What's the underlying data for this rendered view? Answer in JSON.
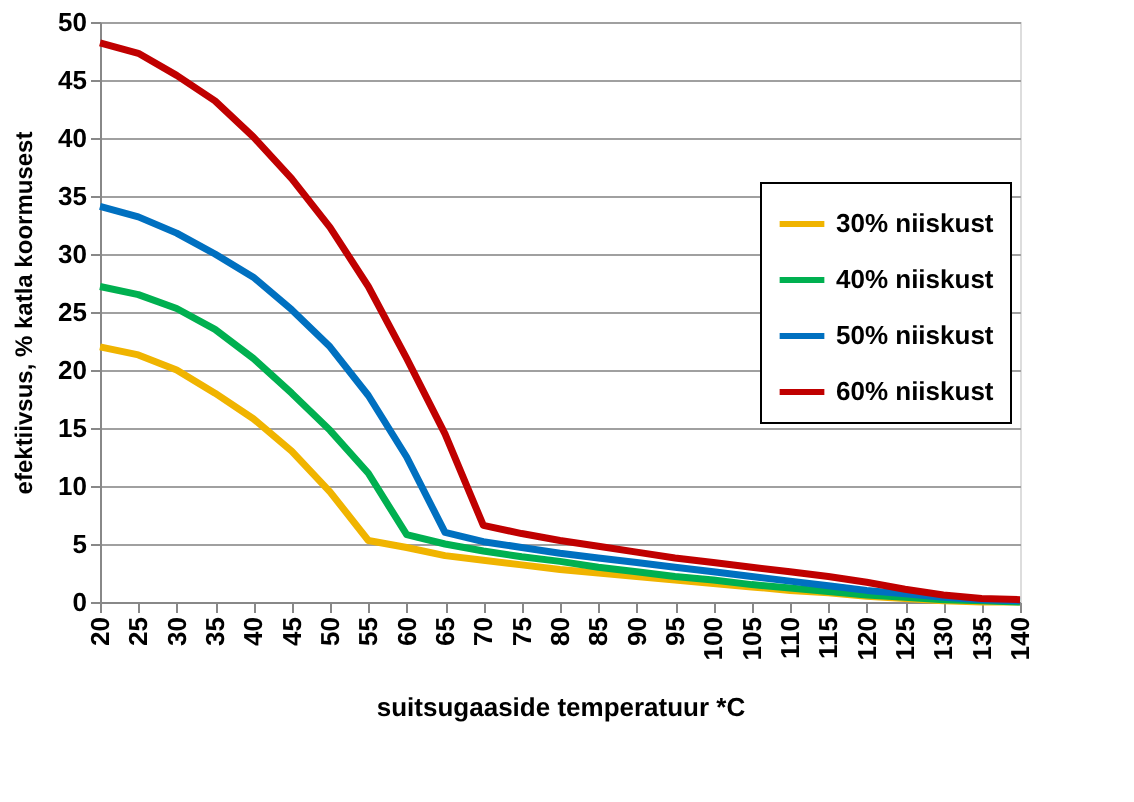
{
  "chart_data": {
    "type": "line",
    "xlabel": "suitsugaaside temperatuur *C",
    "ylabel": "efektiivsus, % katla koormusest",
    "x": [
      20,
      25,
      30,
      35,
      40,
      45,
      50,
      55,
      60,
      65,
      70,
      75,
      80,
      85,
      90,
      95,
      100,
      105,
      110,
      115,
      120,
      125,
      130,
      135,
      140
    ],
    "xlim": [
      20,
      140
    ],
    "xticks": [
      20,
      25,
      30,
      35,
      40,
      45,
      50,
      55,
      60,
      65,
      70,
      75,
      80,
      85,
      90,
      95,
      100,
      105,
      110,
      115,
      120,
      125,
      130,
      135,
      140
    ],
    "ylim": [
      0,
      50
    ],
    "yticks": [
      0,
      5,
      10,
      15,
      20,
      25,
      30,
      35,
      40,
      45,
      50
    ],
    "grid": "y",
    "legend": "right",
    "marker": "none",
    "line_style": "solid",
    "series": [
      {
        "name": "30% niiskust",
        "color": "#f0b400",
        "values": [
          22.0,
          21.3,
          20.0,
          18.0,
          15.8,
          13.0,
          9.5,
          5.3,
          4.7,
          4.0,
          3.6,
          3.2,
          2.8,
          2.5,
          2.2,
          1.9,
          1.6,
          1.3,
          1.0,
          0.8,
          0.5,
          0.3,
          0.1,
          0.0,
          0.0
        ]
      },
      {
        "name": "40% niiskust",
        "color": "#00b050",
        "values": [
          27.2,
          26.5,
          25.3,
          23.5,
          21.0,
          18.0,
          14.8,
          11.1,
          5.8,
          5.0,
          4.4,
          3.9,
          3.5,
          3.0,
          2.6,
          2.2,
          1.9,
          1.5,
          1.2,
          0.9,
          0.6,
          0.4,
          0.2,
          0.1,
          0.0
        ]
      },
      {
        "name": "50% niiskust",
        "color": "#0070c0",
        "values": [
          34.1,
          33.2,
          31.8,
          30.0,
          28.0,
          25.2,
          22.0,
          17.8,
          12.5,
          6.0,
          5.2,
          4.7,
          4.2,
          3.8,
          3.4,
          3.0,
          2.6,
          2.2,
          1.8,
          1.4,
          1.0,
          0.7,
          0.4,
          0.2,
          0.1
        ]
      },
      {
        "name": "60% niiskust",
        "color": "#c00000",
        "values": [
          48.2,
          47.3,
          45.4,
          43.2,
          40.1,
          36.5,
          32.3,
          27.2,
          21.0,
          14.5,
          6.6,
          5.9,
          5.3,
          4.8,
          4.3,
          3.8,
          3.4,
          3.0,
          2.6,
          2.2,
          1.7,
          1.1,
          0.6,
          0.3,
          0.2
        ]
      }
    ]
  }
}
